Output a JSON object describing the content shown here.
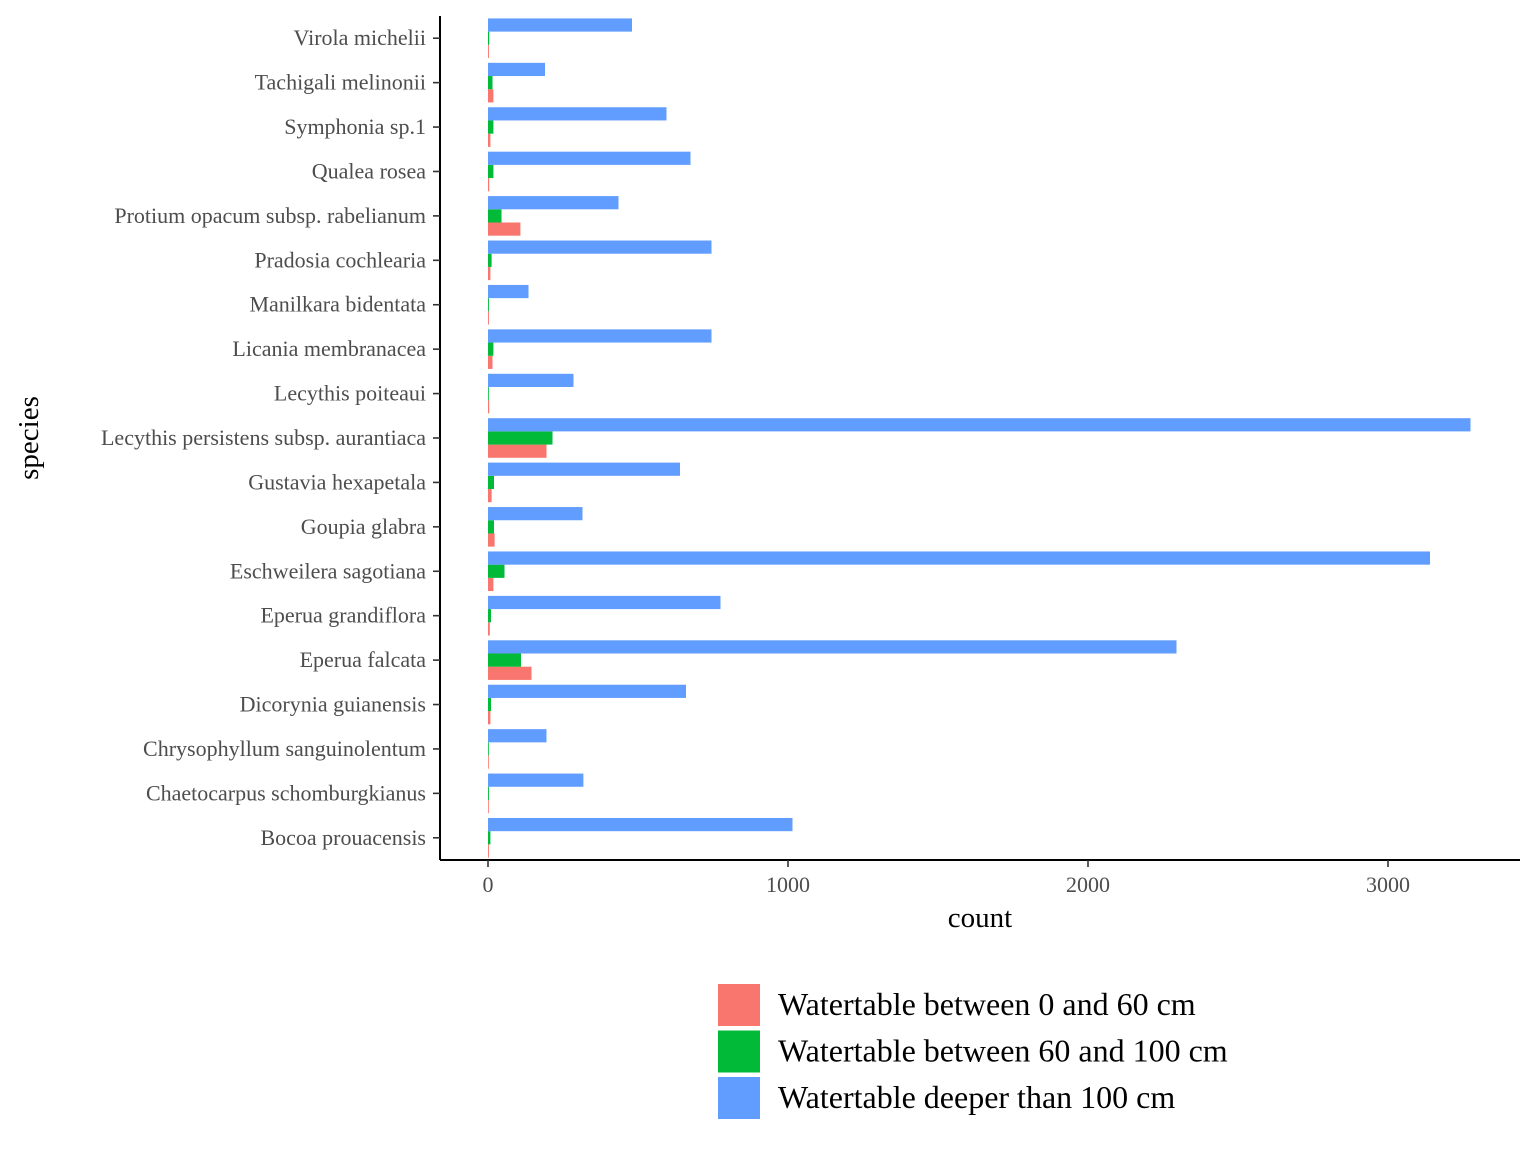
{
  "chart_data": {
    "type": "bar",
    "orientation": "horizontal",
    "position": "dodge",
    "title": "",
    "xlabel": "count",
    "ylabel": "species",
    "xlim": [
      -160,
      3440
    ],
    "x_ticks": [
      0,
      1000,
      2000,
      3000
    ],
    "x_tick_labels": [
      "0",
      "1000",
      "2000",
      "3000"
    ],
    "grid": false,
    "legend_position": "bottom-right",
    "categories": [
      "Virola michelii",
      "Tachigali melinonii",
      "Symphonia sp.1",
      "Qualea rosea",
      "Protium opacum subsp. rabelianum",
      "Pradosia cochlearia",
      "Manilkara bidentata",
      "Licania membranacea",
      "Lecythis poiteaui",
      "Lecythis persistens subsp. aurantiaca",
      "Gustavia hexapetala",
      "Goupia glabra",
      "Eschweilera sagotiana",
      "Eperua grandiflora",
      "Eperua falcata",
      "Dicorynia guianensis",
      "Chrysophyllum sanguinolentum",
      "Chaetocarpus schomburgkianus",
      "Bocoa prouacensis"
    ],
    "series": [
      {
        "name": "Watertable between 0 and 60 cm",
        "color": "#F8766D",
        "values": [
          3,
          18,
          8,
          4,
          108,
          8,
          3,
          15,
          4,
          195,
          12,
          22,
          18,
          6,
          145,
          8,
          1,
          2,
          3
        ]
      },
      {
        "name": "Watertable between 60 and 100 cm",
        "color": "#00BA38",
        "values": [
          4,
          15,
          18,
          18,
          45,
          12,
          3,
          18,
          2,
          215,
          20,
          20,
          55,
          10,
          110,
          10,
          2,
          3,
          8
        ]
      },
      {
        "name": "Watertable deeper than 100 cm",
        "color": "#619CFF",
        "values": [
          480,
          190,
          595,
          675,
          435,
          745,
          135,
          745,
          285,
          3275,
          640,
          315,
          3140,
          775,
          2295,
          660,
          195,
          318,
          1015
        ]
      }
    ]
  }
}
